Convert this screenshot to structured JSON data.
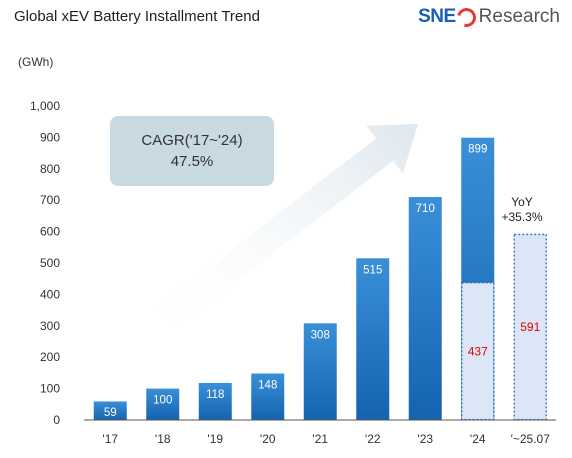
{
  "header": {
    "title": "Global xEV Battery Installment Trend",
    "logo_brand": "SNE",
    "logo_word": "Research"
  },
  "colors": {
    "bar_top": "#3a8fd9",
    "bar_bottom": "#1563ae",
    "projection_fill": "#dde6f7",
    "projection_border": "#2a6fc4",
    "red_label": "#e00000",
    "cagr_box": "#c9d9e2",
    "arrow": "#dde7ee"
  },
  "chart_data": {
    "type": "bar",
    "unit_label": "(GWh)",
    "categories": [
      "'17",
      "'18",
      "'19",
      "'20",
      "'21",
      "'22",
      "'23",
      "'24",
      "'~25.07"
    ],
    "values": [
      59,
      100,
      118,
      148,
      308,
      515,
      710,
      899,
      null
    ],
    "value_labels": [
      "59",
      "100",
      "118",
      "148",
      "308",
      "515",
      "710",
      "899",
      ""
    ],
    "overlay": [
      {
        "category": "'24",
        "value": 437,
        "label": "437",
        "style": "dotted-light"
      },
      {
        "category": "'~25.07",
        "value": 591,
        "label": "591",
        "style": "dotted-light"
      }
    ],
    "yticks": [
      0,
      100,
      200,
      300,
      400,
      500,
      600,
      700,
      800,
      900,
      1000
    ],
    "ytick_labels": [
      "0",
      "100",
      "200",
      "300",
      "400",
      "500",
      "600",
      "700",
      "800",
      "900",
      "1,000"
    ],
    "ylim": [
      0,
      1000
    ],
    "annotations": {
      "cagr_line1": "CAGR('17~'24)",
      "cagr_line2": "47.5%",
      "yoy_line1": "YoY",
      "yoy_line2": "+35.3%"
    },
    "grid": false
  }
}
